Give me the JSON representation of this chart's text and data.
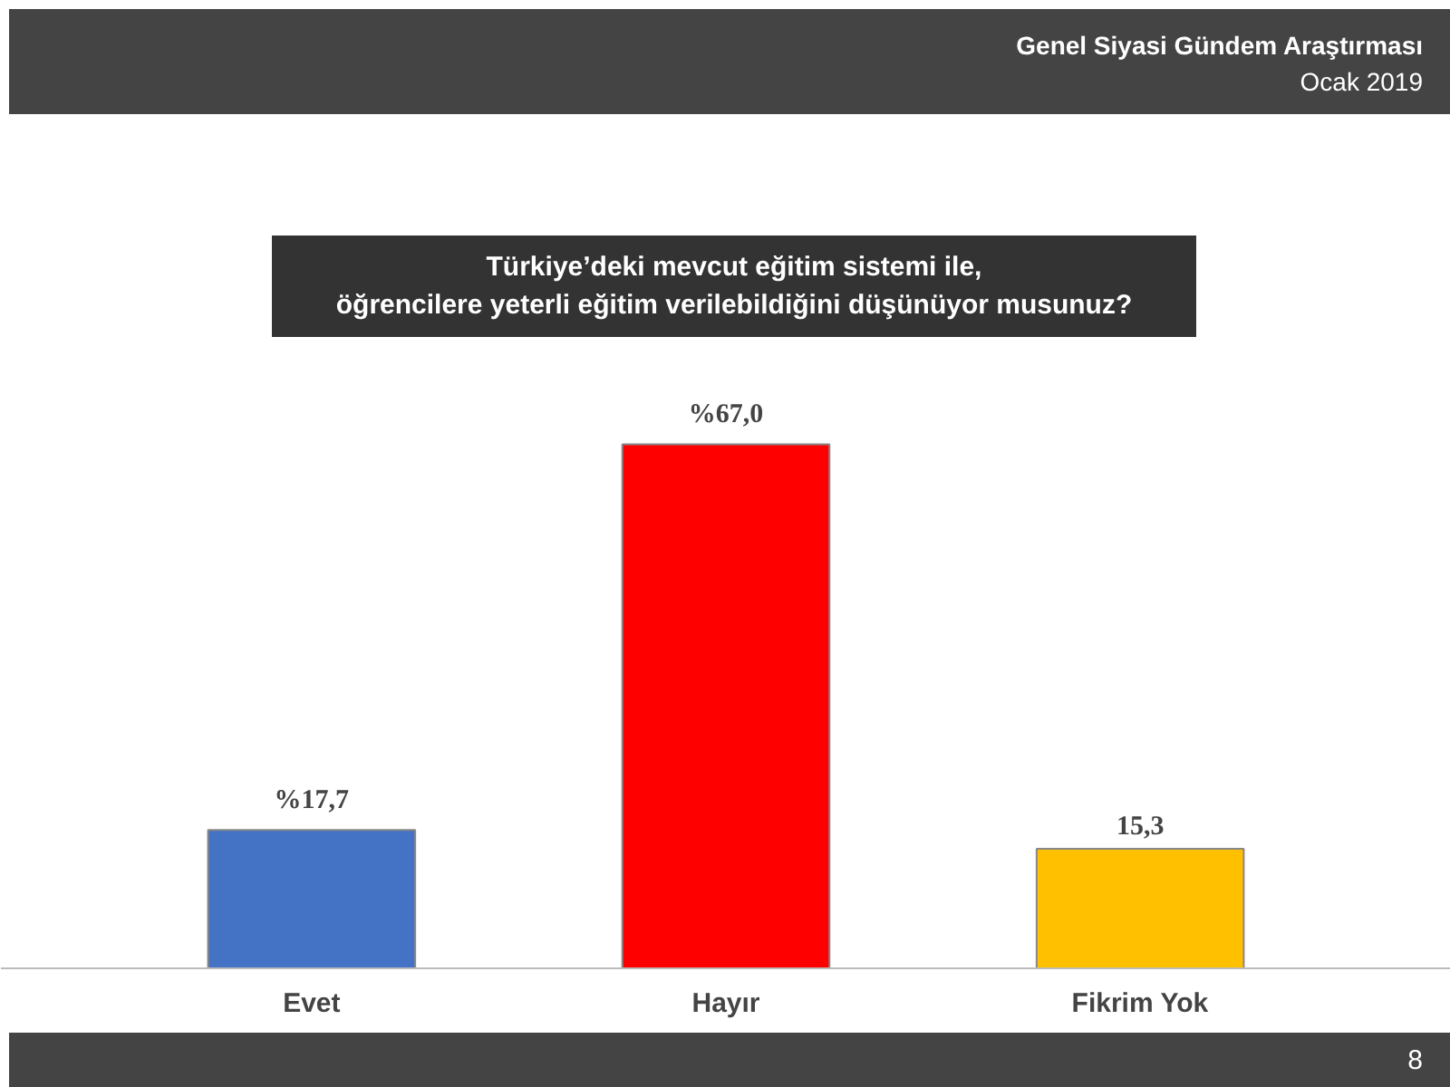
{
  "chart_data": {
    "type": "bar",
    "title": "Türkiye’deki mevcut eğitim sistemi ile,\nöğrencilere yeterli eğitim verilebildiğini düşünüyor musunuz?",
    "subtitle": "Genel Siyasi Gündem Araştırması",
    "annotations": [
      "Ocak 2019",
      "8"
    ],
    "categories": [
      "Evet",
      "Hayır",
      "Fikrim Yok"
    ],
    "values": [
      17.7,
      67.0,
      15.3
    ],
    "colors": [
      "#4472c4",
      "#ff0000",
      "#ffc000"
    ],
    "value_labels": [
      "%17,7",
      "%67,0",
      "15,3"
    ],
    "grid": false
  }
}
